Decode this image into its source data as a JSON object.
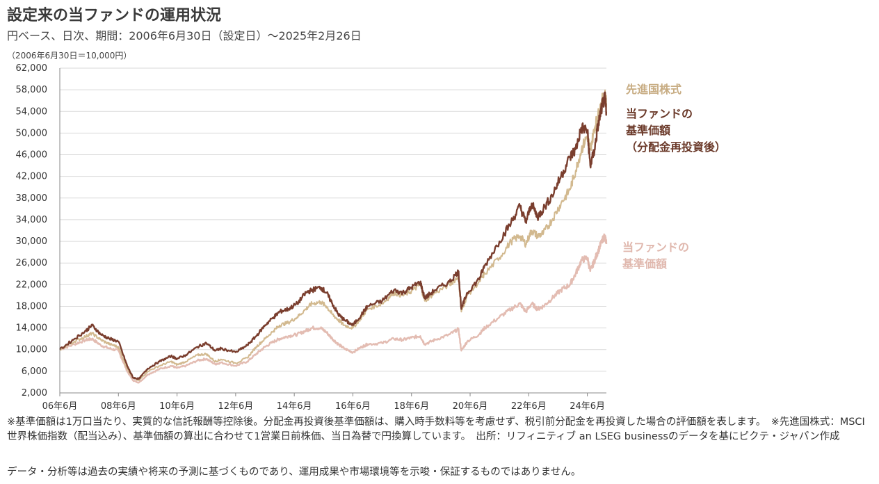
{
  "header": {
    "title": "設定来の当ファンドの運用状況",
    "subtitle": "円ベース、日次、期間：2006年6月30日（設定日）～2025年2月26日",
    "unit_note": "（2006年6月30日＝10,000円）"
  },
  "labels": {
    "developed": "先進国株式",
    "reinvest_line1": "当ファンドの",
    "reinvest_line2": "基準価額",
    "reinvest_line3": "（分配金再投資後）",
    "nav_line1": "当ファンドの",
    "nav_line2": "基準価額"
  },
  "notes": {
    "note1": "※基準価額は1万口当たり、実質的な信託報酬等控除後。分配金再投資後基準価額は、購入時手数料等を考慮せず、税引前分配金を再投資した場合の評価額を表します。　※先進国株式：MSCI世界株価指数（配当込み）、基準価額の算出に合わせて1営業日前株価、当日為替で円換算しています。　出所：リフィニティブ an LSEG businessのデータを基にピクテ・ジャパン作成",
    "disclaimer": "データ・分析等は過去の実績や将来の予測に基づくものであり、運用成果や市場環境等を示唆・保証するものではありません。"
  },
  "colors": {
    "reinvest": "#7a3e2e",
    "developed": "#d2b98f",
    "nav": "#e3bcb2",
    "grid": "#d9d9d9",
    "axis": "#888888"
  },
  "chart_data": {
    "type": "line",
    "xlim": [
      2006.5,
      2025.15
    ],
    "ylim": [
      2000,
      62000
    ],
    "x_tick_labels": [
      "06年6月",
      "08年6月",
      "10年6月",
      "12年6月",
      "14年6月",
      "16年6月",
      "18年6月",
      "20年6月",
      "22年6月",
      "24年6月"
    ],
    "x_tick_values": [
      2006.5,
      2008.5,
      2010.5,
      2012.5,
      2014.5,
      2016.5,
      2018.5,
      2020.5,
      2022.5,
      2024.5
    ],
    "y_ticks": [
      2000,
      6000,
      10000,
      14000,
      18000,
      22000,
      26000,
      30000,
      34000,
      38000,
      42000,
      46000,
      50000,
      54000,
      58000,
      62000
    ],
    "y_tick_labels": [
      "2,000",
      "6,000",
      "10,000",
      "14,000",
      "18,000",
      "22,000",
      "26,000",
      "30,000",
      "34,000",
      "38,000",
      "42,000",
      "46,000",
      "50,000",
      "54,000",
      "58,000",
      "62,000"
    ],
    "series": [
      {
        "name": "当ファンドの基準価額（分配金再投資後）",
        "points": [
          [
            2006.5,
            10000
          ],
          [
            2007.0,
            12000
          ],
          [
            2007.4,
            13500
          ],
          [
            2007.6,
            14500
          ],
          [
            2007.9,
            12800
          ],
          [
            2008.2,
            12000
          ],
          [
            2008.5,
            11500
          ],
          [
            2008.8,
            7000
          ],
          [
            2009.0,
            4800
          ],
          [
            2009.2,
            4600
          ],
          [
            2009.5,
            6500
          ],
          [
            2009.9,
            7800
          ],
          [
            2010.3,
            8800
          ],
          [
            2010.5,
            8300
          ],
          [
            2010.8,
            9000
          ],
          [
            2011.2,
            10500
          ],
          [
            2011.5,
            11200
          ],
          [
            2011.8,
            9800
          ],
          [
            2012.0,
            10200
          ],
          [
            2012.5,
            9500
          ],
          [
            2012.9,
            10800
          ],
          [
            2013.2,
            12500
          ],
          [
            2013.5,
            14500
          ],
          [
            2013.8,
            16000
          ],
          [
            2014.0,
            17000
          ],
          [
            2014.3,
            17500
          ],
          [
            2014.6,
            18500
          ],
          [
            2014.9,
            20500
          ],
          [
            2015.1,
            21000
          ],
          [
            2015.4,
            21500
          ],
          [
            2015.6,
            20500
          ],
          [
            2015.8,
            18500
          ],
          [
            2016.0,
            16500
          ],
          [
            2016.2,
            15500
          ],
          [
            2016.5,
            14500
          ],
          [
            2016.8,
            16500
          ],
          [
            2017.0,
            18000
          ],
          [
            2017.5,
            19000
          ],
          [
            2017.9,
            21000
          ],
          [
            2018.2,
            20500
          ],
          [
            2018.5,
            21500
          ],
          [
            2018.8,
            22500
          ],
          [
            2018.95,
            19500
          ],
          [
            2019.3,
            21000
          ],
          [
            2019.8,
            22500
          ],
          [
            2020.1,
            24500
          ],
          [
            2020.2,
            17500
          ],
          [
            2020.4,
            20500
          ],
          [
            2020.8,
            23000
          ],
          [
            2021.0,
            25500
          ],
          [
            2021.5,
            30000
          ],
          [
            2021.9,
            33500
          ],
          [
            2022.2,
            36500
          ],
          [
            2022.4,
            33500
          ],
          [
            2022.6,
            37000
          ],
          [
            2022.8,
            34500
          ],
          [
            2023.0,
            36000
          ],
          [
            2023.3,
            38500
          ],
          [
            2023.6,
            42000
          ],
          [
            2023.9,
            45500
          ],
          [
            2024.1,
            47000
          ],
          [
            2024.3,
            51000
          ],
          [
            2024.5,
            50500
          ],
          [
            2024.6,
            44000
          ],
          [
            2024.75,
            47000
          ],
          [
            2024.85,
            51000
          ],
          [
            2025.0,
            55000
          ],
          [
            2025.1,
            56500
          ],
          [
            2025.15,
            54000
          ]
        ]
      },
      {
        "name": "先進国株式",
        "points": [
          [
            2006.5,
            10000
          ],
          [
            2007.0,
            11500
          ],
          [
            2007.4,
            12500
          ],
          [
            2007.6,
            13000
          ],
          [
            2007.9,
            11800
          ],
          [
            2008.2,
            11000
          ],
          [
            2008.5,
            10500
          ],
          [
            2008.8,
            6500
          ],
          [
            2009.0,
            4800
          ],
          [
            2009.2,
            4300
          ],
          [
            2009.5,
            6000
          ],
          [
            2009.9,
            7000
          ],
          [
            2010.3,
            7800
          ],
          [
            2010.5,
            7200
          ],
          [
            2010.8,
            7800
          ],
          [
            2011.2,
            9000
          ],
          [
            2011.5,
            9200
          ],
          [
            2011.8,
            7800
          ],
          [
            2012.0,
            8200
          ],
          [
            2012.5,
            7500
          ],
          [
            2012.9,
            8500
          ],
          [
            2013.2,
            10500
          ],
          [
            2013.5,
            12000
          ],
          [
            2013.8,
            13500
          ],
          [
            2014.0,
            14500
          ],
          [
            2014.3,
            15000
          ],
          [
            2014.6,
            16000
          ],
          [
            2014.9,
            17500
          ],
          [
            2015.1,
            18500
          ],
          [
            2015.4,
            18800
          ],
          [
            2015.6,
            18000
          ],
          [
            2015.8,
            16500
          ],
          [
            2016.0,
            15500
          ],
          [
            2016.2,
            14500
          ],
          [
            2016.5,
            14000
          ],
          [
            2016.8,
            16000
          ],
          [
            2017.0,
            17500
          ],
          [
            2017.5,
            18500
          ],
          [
            2017.9,
            20500
          ],
          [
            2018.2,
            20000
          ],
          [
            2018.5,
            20800
          ],
          [
            2018.8,
            22000
          ],
          [
            2018.95,
            19000
          ],
          [
            2019.3,
            20500
          ],
          [
            2019.8,
            22000
          ],
          [
            2020.1,
            23500
          ],
          [
            2020.2,
            17000
          ],
          [
            2020.4,
            20000
          ],
          [
            2020.8,
            22500
          ],
          [
            2021.0,
            24000
          ],
          [
            2021.5,
            27000
          ],
          [
            2021.9,
            30000
          ],
          [
            2022.2,
            31000
          ],
          [
            2022.4,
            29500
          ],
          [
            2022.6,
            32000
          ],
          [
            2022.8,
            31000
          ],
          [
            2023.0,
            31500
          ],
          [
            2023.3,
            34000
          ],
          [
            2023.6,
            37000
          ],
          [
            2023.9,
            39500
          ],
          [
            2024.1,
            43000
          ],
          [
            2024.3,
            47000
          ],
          [
            2024.5,
            49500
          ],
          [
            2024.6,
            47000
          ],
          [
            2024.75,
            51000
          ],
          [
            2024.85,
            53000
          ],
          [
            2025.0,
            56000
          ],
          [
            2025.1,
            57000
          ],
          [
            2025.15,
            55500
          ]
        ]
      },
      {
        "name": "当ファンドの基準価額",
        "points": [
          [
            2006.5,
            10000
          ],
          [
            2007.0,
            11000
          ],
          [
            2007.4,
            11800
          ],
          [
            2007.6,
            12000
          ],
          [
            2007.9,
            10800
          ],
          [
            2008.2,
            10200
          ],
          [
            2008.5,
            9800
          ],
          [
            2008.8,
            6000
          ],
          [
            2009.0,
            4300
          ],
          [
            2009.2,
            3900
          ],
          [
            2009.5,
            5400
          ],
          [
            2009.9,
            6400
          ],
          [
            2010.3,
            7000
          ],
          [
            2010.5,
            6600
          ],
          [
            2010.8,
            7000
          ],
          [
            2011.2,
            8000
          ],
          [
            2011.5,
            8300
          ],
          [
            2011.8,
            7300
          ],
          [
            2012.0,
            7600
          ],
          [
            2012.5,
            7000
          ],
          [
            2012.9,
            7800
          ],
          [
            2013.2,
            9200
          ],
          [
            2013.5,
            10500
          ],
          [
            2013.8,
            11500
          ],
          [
            2014.0,
            12000
          ],
          [
            2014.3,
            12500
          ],
          [
            2014.6,
            12800
          ],
          [
            2014.9,
            13500
          ],
          [
            2015.1,
            14000
          ],
          [
            2015.4,
            14000
          ],
          [
            2015.6,
            13200
          ],
          [
            2015.8,
            12000
          ],
          [
            2016.0,
            11000
          ],
          [
            2016.2,
            10200
          ],
          [
            2016.5,
            9500
          ],
          [
            2016.8,
            10500
          ],
          [
            2017.0,
            11000
          ],
          [
            2017.5,
            11200
          ],
          [
            2017.9,
            12000
          ],
          [
            2018.2,
            11800
          ],
          [
            2018.5,
            12200
          ],
          [
            2018.8,
            12500
          ],
          [
            2018.95,
            11000
          ],
          [
            2019.3,
            11800
          ],
          [
            2019.8,
            12800
          ],
          [
            2020.1,
            13800
          ],
          [
            2020.2,
            9800
          ],
          [
            2020.4,
            11500
          ],
          [
            2020.8,
            12800
          ],
          [
            2021.0,
            14000
          ],
          [
            2021.5,
            16000
          ],
          [
            2021.9,
            17500
          ],
          [
            2022.2,
            18500
          ],
          [
            2022.4,
            17000
          ],
          [
            2022.6,
            18500
          ],
          [
            2022.8,
            17500
          ],
          [
            2023.0,
            18000
          ],
          [
            2023.3,
            19500
          ],
          [
            2023.6,
            21000
          ],
          [
            2023.9,
            22000
          ],
          [
            2024.1,
            24000
          ],
          [
            2024.3,
            26500
          ],
          [
            2024.5,
            27000
          ],
          [
            2024.6,
            24500
          ],
          [
            2024.75,
            26500
          ],
          [
            2024.85,
            28000
          ],
          [
            2025.0,
            30000
          ],
          [
            2025.1,
            31000
          ],
          [
            2025.15,
            29500
          ]
        ]
      }
    ]
  }
}
